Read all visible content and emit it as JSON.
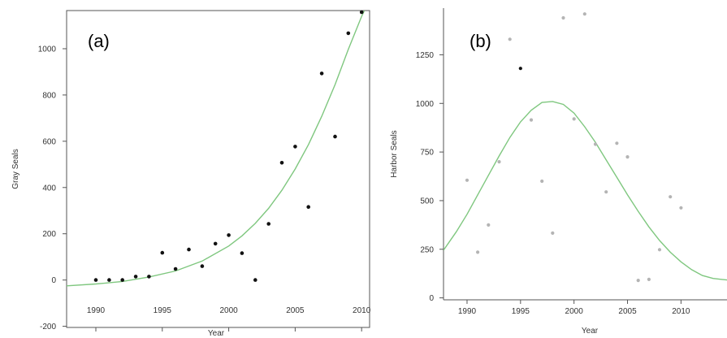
{
  "chart_data": [
    {
      "type": "scatter",
      "panel_label": "(a)",
      "xlabel": "Year",
      "ylabel": "Gray Seals",
      "xlim": [
        1987.8,
        2010.6
      ],
      "ylim": [
        -205,
        1165
      ],
      "xticks": [
        "1990",
        "1995",
        "2000",
        "2005",
        "2010"
      ],
      "yticks": [
        "-200",
        "0",
        "200",
        "400",
        "600",
        "800",
        "1000"
      ],
      "grid": false,
      "series": [
        {
          "kind": "points",
          "color": "#111111",
          "x": [
            1990,
            1991,
            1992,
            1993,
            1994,
            1995,
            1996,
            1997,
            1998,
            1999,
            2000,
            2001,
            2002,
            2003,
            2004,
            2005,
            2006,
            2007,
            2008,
            2009,
            2010
          ],
          "y": [
            0,
            0,
            0,
            15,
            15,
            118,
            48,
            132,
            60,
            157,
            194,
            116,
            0,
            243,
            507,
            577,
            316,
            893,
            620,
            1067,
            1158
          ]
        },
        {
          "kind": "line",
          "color": "#7fc77f",
          "x": [
            1987.8,
            1990,
            1992,
            1994,
            1996,
            1998,
            2000,
            2001,
            2002,
            2003,
            2004,
            2005,
            2006,
            2007,
            2008,
            2009,
            2010,
            2010.5
          ],
          "y": [
            -25,
            -17,
            -6,
            13,
            39,
            82,
            147,
            191,
            245,
            310,
            388,
            480,
            585,
            708,
            845,
            997,
            1140,
            1200
          ]
        }
      ]
    },
    {
      "type": "scatter",
      "panel_label": "(b)",
      "xlabel": "Year",
      "ylabel": "Harbor Seals",
      "xlim": [
        1987.8,
        2014.3
      ],
      "ylim": [
        -10,
        1490
      ],
      "xticks": [
        "1990",
        "1995",
        "2000",
        "2005",
        "2010"
      ],
      "yticks": [
        "0",
        "250",
        "500",
        "750",
        "1000",
        "1250"
      ],
      "grid": false,
      "series": [
        {
          "kind": "points",
          "color": "#b4b4b4",
          "x": [
            1990,
            1991,
            1992,
            1993,
            1994,
            1996,
            1997,
            1998,
            1999,
            2000,
            2001,
            2002,
            2003,
            2004,
            2005,
            2006,
            2007,
            2008,
            2009,
            2010
          ],
          "y": [
            605,
            235,
            375,
            700,
            1330,
            915,
            600,
            333,
            1440,
            920,
            1460,
            790,
            545,
            795,
            725,
            90,
            95,
            248,
            520,
            463
          ]
        },
        {
          "kind": "points",
          "color": "#111111",
          "x": [
            1995
          ],
          "y": [
            1180
          ]
        },
        {
          "kind": "line",
          "color": "#7fc77f",
          "x": [
            1987.8,
            1989,
            1990,
            1991,
            1992,
            1993,
            1994,
            1995,
            1996,
            1997,
            1998,
            1999,
            2000,
            2001,
            2002,
            2003,
            2004,
            2005,
            2006,
            2007,
            2008,
            2009,
            2010,
            2011,
            2012,
            2013,
            2014.3
          ],
          "y": [
            245,
            340,
            430,
            530,
            630,
            730,
            825,
            905,
            965,
            1005,
            1010,
            995,
            950,
            880,
            800,
            710,
            620,
            530,
            445,
            365,
            295,
            235,
            185,
            145,
            115,
            100,
            92
          ]
        }
      ]
    }
  ]
}
